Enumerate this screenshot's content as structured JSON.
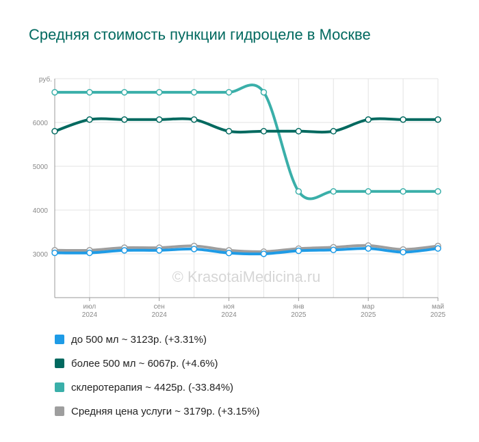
{
  "chart_data": {
    "type": "line",
    "title": "Средняя стоимость пункции гидроцеле в Москве",
    "ylabel": "руб.",
    "ylim": [
      2000,
      7000
    ],
    "yticks": [
      3000,
      4000,
      5000,
      6000
    ],
    "x": [
      "2024-06",
      "2024-07",
      "2024-08",
      "2024-09",
      "2024-10",
      "2024-11",
      "2024-12",
      "2025-01",
      "2025-02",
      "2025-03",
      "2025-04",
      "2025-05"
    ],
    "xtick_labels": [
      {
        "month": "июл",
        "year": "2024",
        "index": 1
      },
      {
        "month": "сен",
        "year": "2024",
        "index": 3
      },
      {
        "month": "ноя",
        "year": "2024",
        "index": 5
      },
      {
        "month": "янв",
        "year": "2025",
        "index": 7
      },
      {
        "month": "мар",
        "year": "2025",
        "index": 9
      },
      {
        "month": "май",
        "year": "2025",
        "index": 11
      }
    ],
    "series": [
      {
        "name": "склеротерапия",
        "legend": "склеротерапия ~ 4425р. (-33.84%)",
        "color": "#3aafa9",
        "values": [
          6690,
          6690,
          6690,
          6690,
          6690,
          6690,
          6690,
          4425,
          4425,
          4425,
          4425,
          4425
        ]
      },
      {
        "name": "более 500 мл",
        "legend": "более 500 мл ~ 6067р. (+4.6%)",
        "color": "#00695f",
        "values": [
          5800,
          6067,
          6067,
          6067,
          6067,
          5800,
          5800,
          5800,
          5800,
          6067,
          6067,
          6067
        ]
      },
      {
        "name": "Средняя цена услуги",
        "legend": "Средняя цена услуги ~ 3179р. (+3.15%)",
        "color": "#9e9e9e",
        "values": [
          3082,
          3082,
          3140,
          3140,
          3180,
          3080,
          3050,
          3120,
          3150,
          3190,
          3100,
          3179
        ]
      },
      {
        "name": "до 500 мл",
        "legend": "до 500 мл ~ 3123р. (+3.31%)",
        "color": "#1e9be6",
        "values": [
          3023,
          3023,
          3080,
          3080,
          3110,
          3020,
          3000,
          3070,
          3090,
          3123,
          3040,
          3123
        ]
      }
    ],
    "legend_order": [
      "до 500 мл",
      "более 500 мл",
      "склеротерапия",
      "Средняя цена услуги"
    ],
    "watermark": "© KrasotaiMedicina.ru",
    "grid": true,
    "legend_position": "bottom"
  }
}
